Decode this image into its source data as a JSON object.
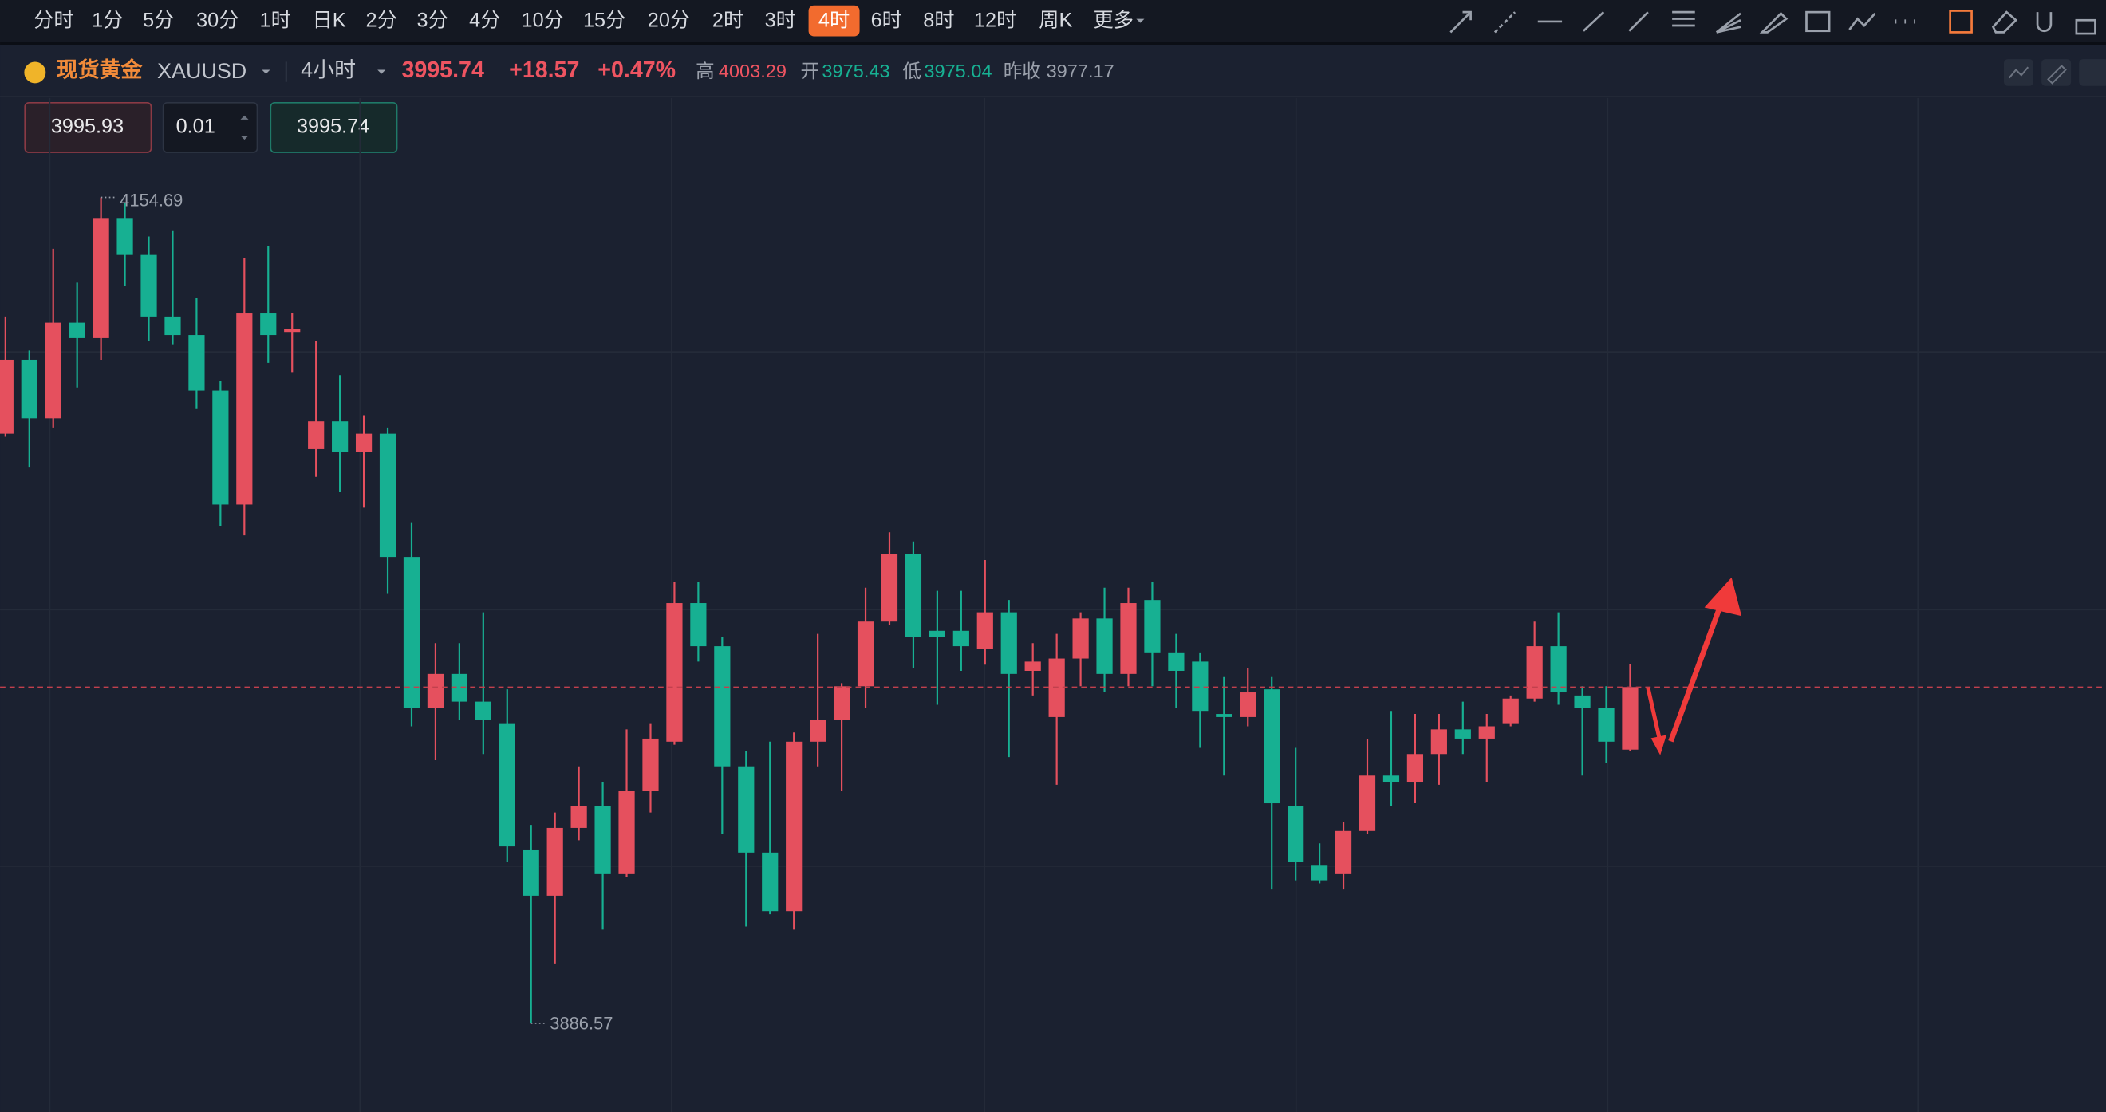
{
  "toolbar": {
    "timeframes": [
      "分时",
      "1分",
      "5分",
      "30分",
      "1时",
      "日K",
      "2分",
      "3分",
      "4分",
      "10分",
      "15分",
      "20分",
      "2时",
      "3时",
      "4时",
      "6时",
      "8时",
      "12时",
      "周K",
      "更多"
    ],
    "active": "4时"
  },
  "header": {
    "name": "现货黄金",
    "symbol": "XAUUSD",
    "period": "4小时",
    "price": "3995.74",
    "change": "+18.57",
    "change_pct": "+0.47%",
    "high_label": "高",
    "high": "4003.29",
    "open_label": "开",
    "open": "3975.43",
    "low_label": "低",
    "low": "3975.04",
    "prev_close_label": "昨收",
    "prev_close": "3977.17"
  },
  "order": {
    "sell": "3995.93",
    "quantity": "0.01",
    "buy": "3995.74"
  },
  "chart_data": {
    "type": "candlestick",
    "up_color": "#e5505e",
    "down_color": "#17b092",
    "grid": true,
    "open": [
      4078,
      4102,
      4083,
      4114,
      4109,
      4148,
      4136,
      4116,
      4110,
      4092,
      4055,
      4117,
      4111,
      4073,
      4082,
      4072,
      4078,
      4038,
      3989,
      4000,
      3991,
      3984,
      3943,
      3928,
      3950,
      3957,
      3935,
      3962,
      3978,
      4023,
      4009,
      3970,
      3942,
      3923,
      3978,
      3985,
      3996,
      4017,
      4039,
      4014,
      4014,
      4008,
      4020,
      4001,
      3986,
      4005,
      4018,
      4000,
      4024,
      4007,
      4004,
      3987,
      3986,
      3995,
      3957,
      3938,
      3935,
      3949,
      3967,
      3965,
      3974,
      3982,
      3979,
      3984,
      3992,
      4009,
      3993,
      3989,
      3975.43
    ],
    "high": [
      4116,
      4105,
      4138,
      4127,
      4154.69,
      4153,
      4142,
      4144,
      4122,
      4095,
      4135,
      4139,
      4117,
      4108,
      4097,
      4084,
      4080,
      4049,
      4010,
      4010,
      4020,
      3995,
      3951,
      3955,
      3970,
      3965,
      3982,
      3984,
      4030,
      4030,
      4012,
      3975,
      3978,
      3981,
      4013,
      3997,
      4028,
      4046,
      4043,
      4027,
      4027,
      4037,
      4024,
      4010,
      4013,
      4020,
      4028,
      4028,
      4030,
      4013,
      4007,
      3999,
      4002,
      3999,
      3976,
      3945,
      3952,
      3979,
      3988,
      3987,
      3987,
      3991,
      3987,
      3993,
      4017,
      4020,
      3996,
      3996,
      4003.29
    ],
    "low": [
      4077,
      4067,
      4080,
      4093,
      4102,
      4126,
      4108,
      4107,
      4086,
      4048,
      4045,
      4101,
      4098,
      4064,
      4059,
      4054,
      4026,
      3983,
      3972,
      3985,
      3974,
      3939,
      3886.57,
      3906,
      3946,
      3917,
      3934,
      3955,
      3977,
      4004,
      3948,
      3918,
      3922,
      3917,
      3970,
      3962,
      3989,
      4016,
      4002,
      3990,
      4001,
      4003,
      3973,
      3993,
      3964,
      3996,
      3994,
      3996,
      3996,
      3989,
      3976,
      3967,
      3983,
      3930,
      3933,
      3932,
      3930,
      3948,
      3957,
      3958,
      3964,
      3974,
      3965,
      3983,
      3991,
      3990,
      3967,
      3971,
      3975.04
    ],
    "close": [
      4102,
      4083,
      4114,
      4109,
      4148,
      4136,
      4116,
      4110,
      4092,
      4055,
      4117,
      4110,
      4112,
      4082,
      4072,
      4078,
      4038,
      3989,
      4000,
      3991,
      3985,
      3944,
      3928,
      3950,
      3957,
      3935,
      3962,
      3979,
      4023,
      4009,
      3970,
      3942,
      3923,
      3978,
      3985,
      3996,
      4017,
      4039,
      4012,
      4012,
      4009,
      4020,
      4000,
      4004,
      4005,
      4018,
      4000,
      4023,
      4007,
      4001,
      3988,
      3986,
      3994,
      3958,
      3939,
      3933,
      3949,
      3967,
      3965,
      3974,
      3982,
      3979,
      3983,
      3992,
      4009,
      3994,
      3989,
      3978,
      3995.74
    ]
  }
}
